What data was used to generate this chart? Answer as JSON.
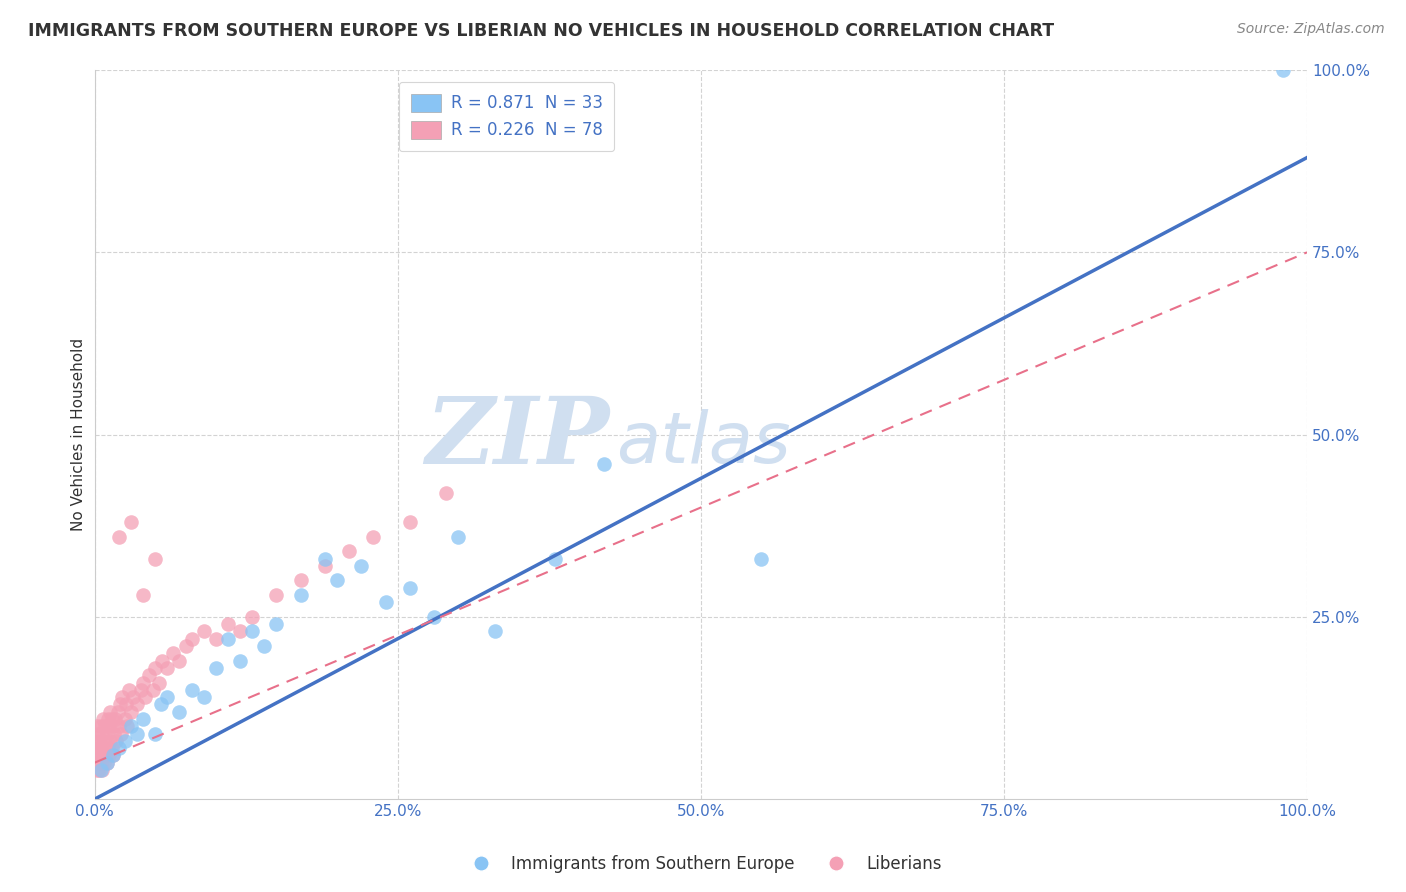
{
  "title": "IMMIGRANTS FROM SOUTHERN EUROPE VS LIBERIAN NO VEHICLES IN HOUSEHOLD CORRELATION CHART",
  "source": "Source: ZipAtlas.com",
  "ylabel": "No Vehicles in Household",
  "xlim": [
    0,
    1.0
  ],
  "ylim": [
    0,
    1.0
  ],
  "xtick_labels": [
    "0.0%",
    "25.0%",
    "50.0%",
    "75.0%",
    "100.0%"
  ],
  "xtick_vals": [
    0,
    0.25,
    0.5,
    0.75,
    1.0
  ],
  "ytick_labels": [
    "25.0%",
    "50.0%",
    "75.0%",
    "100.0%"
  ],
  "ytick_vals": [
    0.25,
    0.5,
    0.75,
    1.0
  ],
  "legend_labels": [
    "Immigrants from Southern Europe",
    "Liberians"
  ],
  "blue_color": "#89c4f4",
  "pink_color": "#f4a0b5",
  "blue_line_color": "#4472c4",
  "pink_line_color": "#e8708a",
  "watermark_zip": "ZIP",
  "watermark_atlas": "atlas",
  "watermark_color": "#d0dff0",
  "R_blue": 0.871,
  "N_blue": 33,
  "R_pink": 0.226,
  "N_pink": 78,
  "tick_color": "#4472c4",
  "blue_line": {
    "x0": 0.0,
    "y0": 0.0,
    "x1": 1.0,
    "y1": 0.88
  },
  "pink_line": {
    "x0": 0.0,
    "y0": 0.05,
    "x1": 1.0,
    "y1": 0.75
  },
  "blue_scatter": {
    "x": [
      0.005,
      0.01,
      0.015,
      0.02,
      0.025,
      0.03,
      0.035,
      0.04,
      0.05,
      0.055,
      0.06,
      0.07,
      0.08,
      0.09,
      0.1,
      0.11,
      0.12,
      0.13,
      0.14,
      0.15,
      0.17,
      0.19,
      0.2,
      0.22,
      0.24,
      0.26,
      0.28,
      0.3,
      0.33,
      0.38,
      0.42,
      0.55,
      0.98
    ],
    "y": [
      0.04,
      0.05,
      0.06,
      0.07,
      0.08,
      0.1,
      0.09,
      0.11,
      0.09,
      0.13,
      0.14,
      0.12,
      0.15,
      0.14,
      0.18,
      0.22,
      0.19,
      0.23,
      0.21,
      0.24,
      0.28,
      0.33,
      0.3,
      0.32,
      0.27,
      0.29,
      0.25,
      0.36,
      0.23,
      0.33,
      0.46,
      0.33,
      1.0
    ]
  },
  "pink_scatter": {
    "x": [
      0.001,
      0.001,
      0.002,
      0.002,
      0.002,
      0.003,
      0.003,
      0.003,
      0.004,
      0.004,
      0.004,
      0.005,
      0.005,
      0.005,
      0.006,
      0.006,
      0.007,
      0.007,
      0.008,
      0.008,
      0.009,
      0.009,
      0.01,
      0.01,
      0.011,
      0.011,
      0.012,
      0.012,
      0.013,
      0.013,
      0.014,
      0.014,
      0.015,
      0.015,
      0.016,
      0.017,
      0.018,
      0.019,
      0.02,
      0.021,
      0.022,
      0.023,
      0.025,
      0.026,
      0.027,
      0.028,
      0.03,
      0.032,
      0.035,
      0.038,
      0.04,
      0.042,
      0.045,
      0.048,
      0.05,
      0.053,
      0.056,
      0.06,
      0.065,
      0.07,
      0.075,
      0.08,
      0.09,
      0.1,
      0.11,
      0.12,
      0.13,
      0.15,
      0.17,
      0.19,
      0.21,
      0.23,
      0.26,
      0.29,
      0.02,
      0.03,
      0.04,
      0.05
    ],
    "y": [
      0.05,
      0.08,
      0.04,
      0.06,
      0.1,
      0.05,
      0.07,
      0.09,
      0.04,
      0.06,
      0.08,
      0.05,
      0.07,
      0.1,
      0.04,
      0.09,
      0.06,
      0.11,
      0.05,
      0.08,
      0.06,
      0.1,
      0.05,
      0.09,
      0.07,
      0.11,
      0.06,
      0.1,
      0.08,
      0.12,
      0.07,
      0.11,
      0.06,
      0.1,
      0.09,
      0.11,
      0.08,
      0.12,
      0.1,
      0.13,
      0.09,
      0.14,
      0.11,
      0.13,
      0.1,
      0.15,
      0.12,
      0.14,
      0.13,
      0.15,
      0.16,
      0.14,
      0.17,
      0.15,
      0.18,
      0.16,
      0.19,
      0.18,
      0.2,
      0.19,
      0.21,
      0.22,
      0.23,
      0.22,
      0.24,
      0.23,
      0.25,
      0.28,
      0.3,
      0.32,
      0.34,
      0.36,
      0.38,
      0.42,
      0.36,
      0.38,
      0.28,
      0.33
    ]
  }
}
